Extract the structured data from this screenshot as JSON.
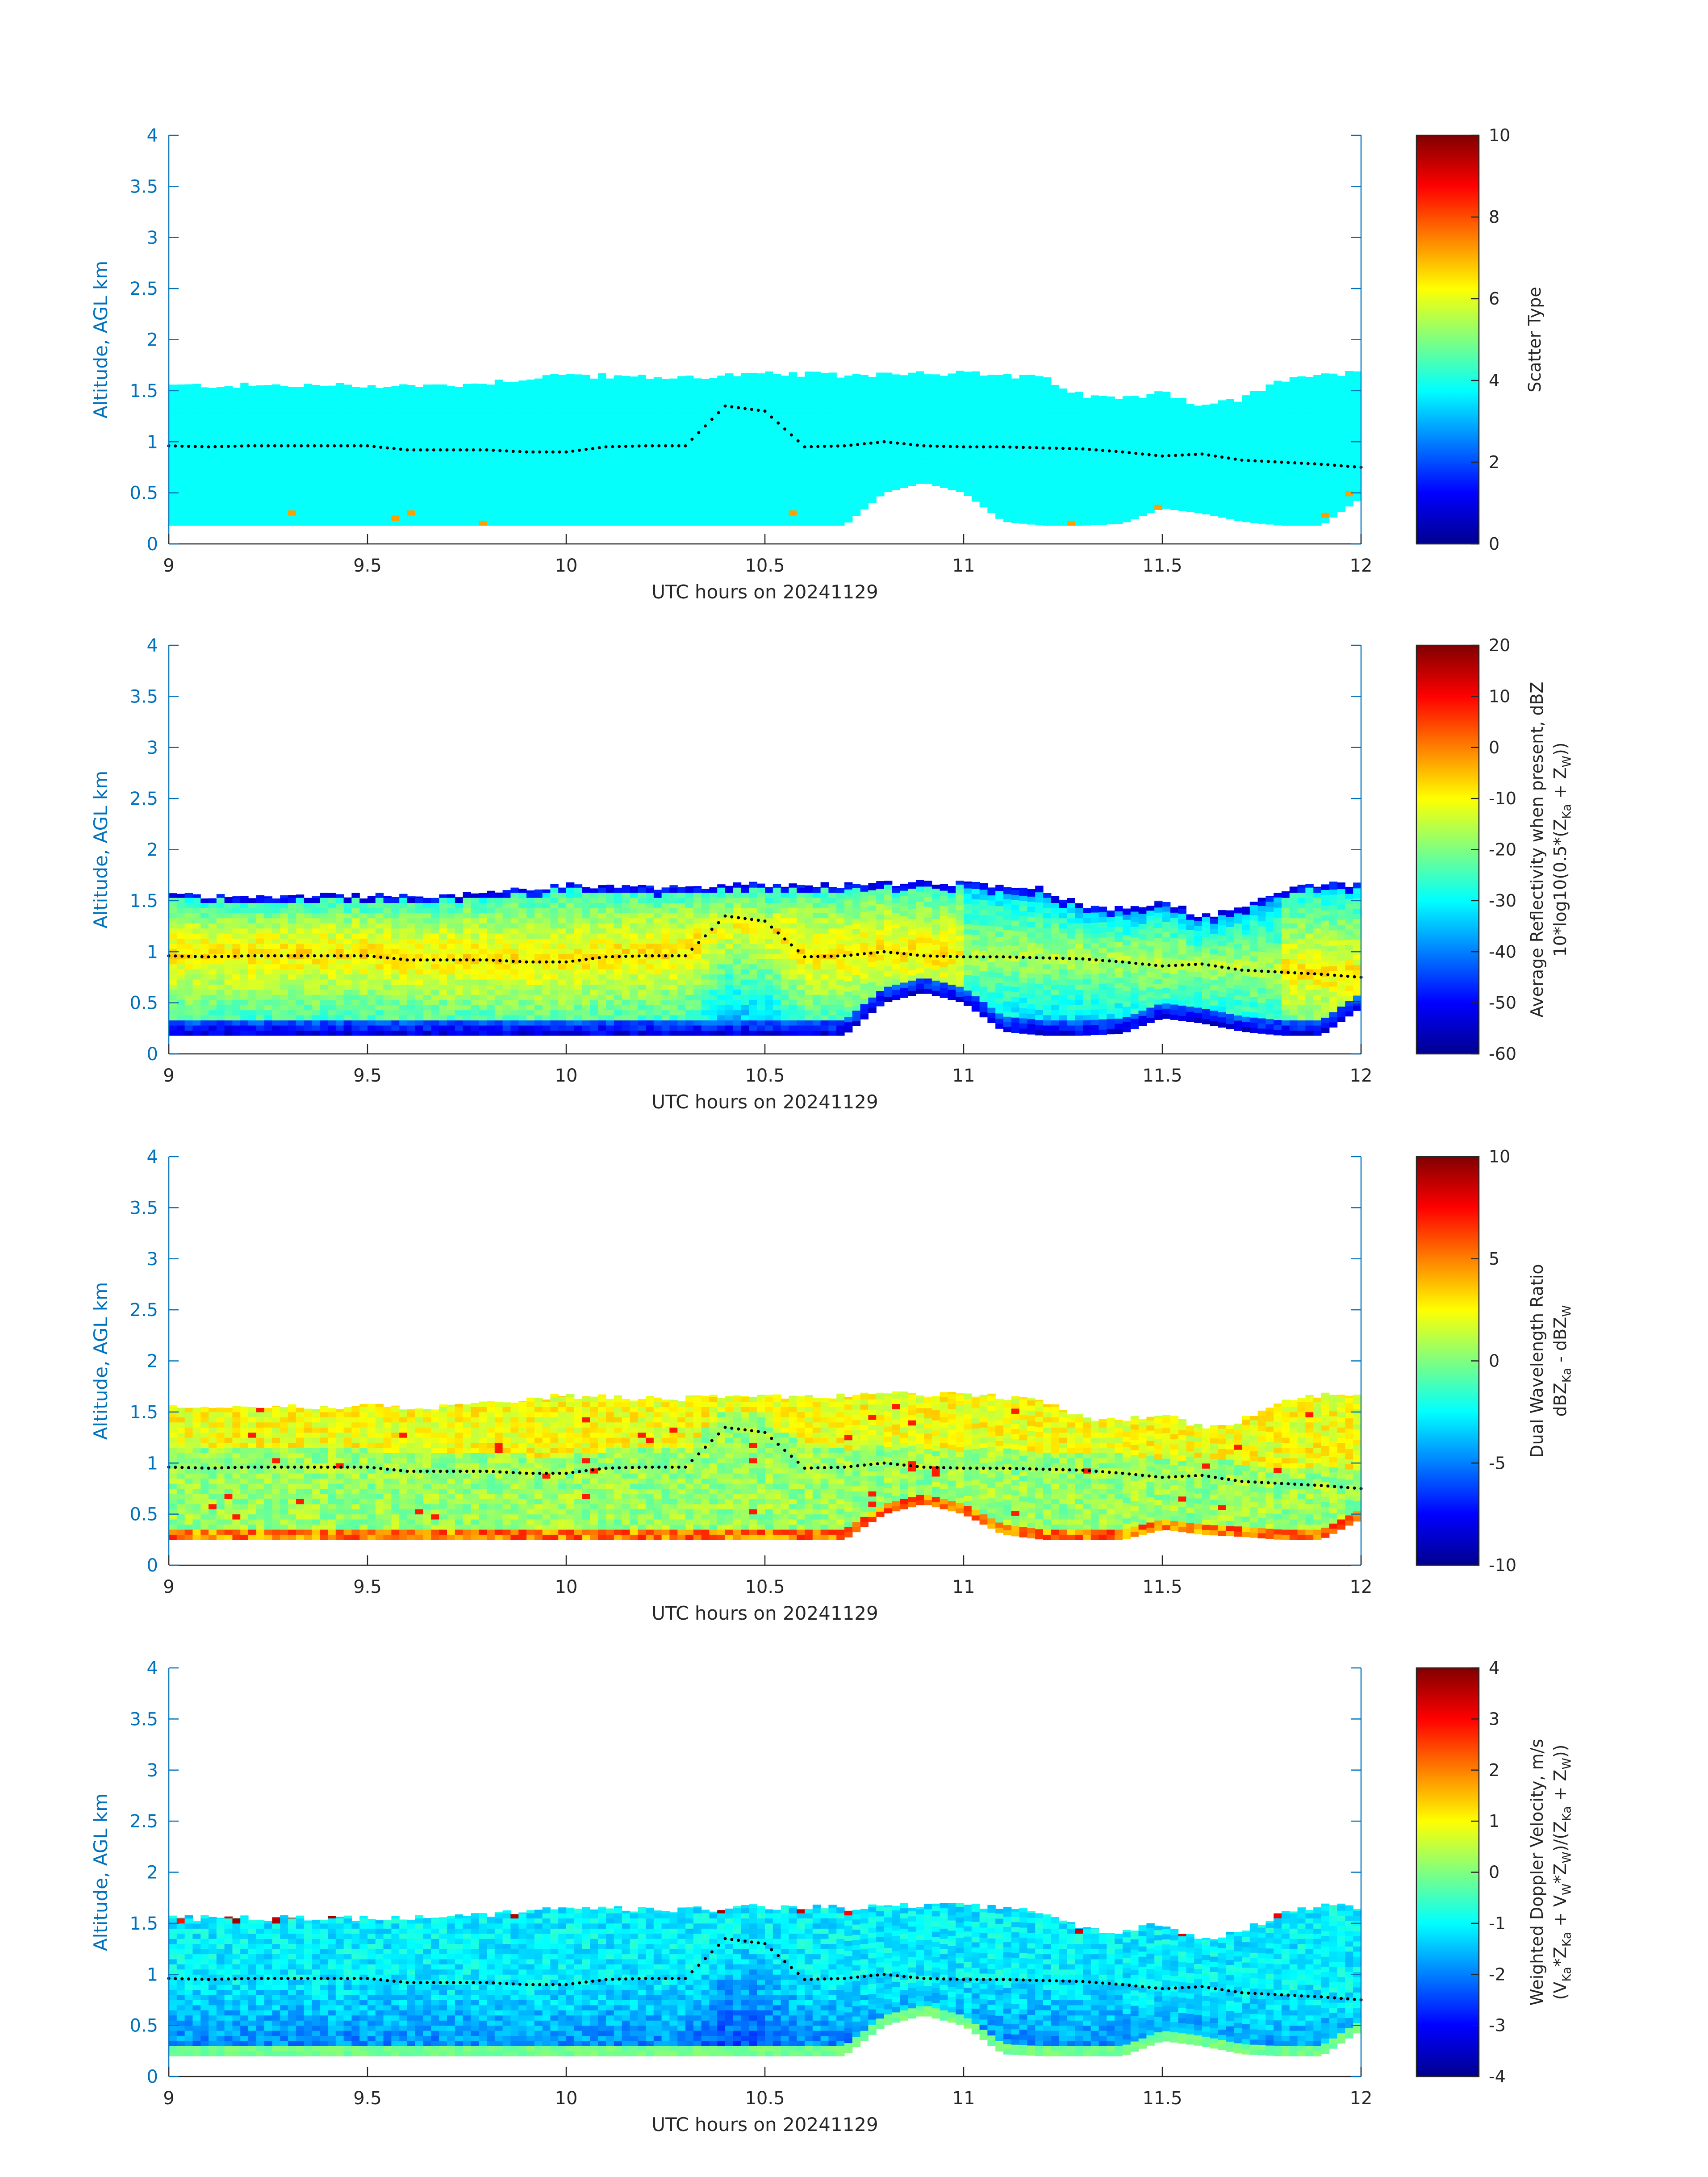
{
  "chart_data": [
    {
      "type": "heatmap",
      "xlabel": "UTC hours on 20241129",
      "ylabel": "Altitude, AGL km",
      "xlim": [
        9,
        12
      ],
      "ylim": [
        0,
        4
      ],
      "xticks": [
        "9",
        "9.5",
        "10",
        "10.5",
        "11",
        "11.5",
        "12"
      ],
      "yticks": [
        "0",
        "0.5",
        "1",
        "1.5",
        "2",
        "2.5",
        "3",
        "3.5",
        "4"
      ],
      "colorbar_label_lines": [
        "Scatter Type"
      ],
      "colorbar_range": [
        0,
        10
      ],
      "colorbar_ticks": [
        "0",
        "2",
        "4",
        "6",
        "8",
        "10"
      ],
      "mode": "type",
      "dominant_value": 3.8,
      "echo_top_km": [
        1.55,
        1.55,
        1.55,
        1.55,
        1.55,
        1.55,
        1.55,
        1.55,
        1.58,
        1.62,
        1.66,
        1.64,
        1.63,
        1.63,
        1.65,
        1.66,
        1.66,
        1.65,
        1.67,
        1.68,
        1.67,
        1.65,
        1.62,
        1.45,
        1.42,
        1.5,
        1.35,
        1.42,
        1.6,
        1.67,
        1.66
      ],
      "echo_base_km": [
        0.18,
        0.18,
        0.18,
        0.18,
        0.18,
        0.18,
        0.18,
        0.18,
        0.18,
        0.18,
        0.18,
        0.18,
        0.18,
        0.18,
        0.18,
        0.18,
        0.18,
        0.18,
        0.5,
        0.6,
        0.5,
        0.22,
        0.18,
        0.18,
        0.2,
        0.35,
        0.3,
        0.22,
        0.18,
        0.18,
        0.45
      ]
    },
    {
      "type": "heatmap",
      "xlabel": "UTC hours on 20241129",
      "ylabel": "Altitude, AGL km",
      "xlim": [
        9,
        12
      ],
      "ylim": [
        0,
        4
      ],
      "xticks": [
        "9",
        "9.5",
        "10",
        "10.5",
        "11",
        "11.5",
        "12"
      ],
      "yticks": [
        "0",
        "0.5",
        "1",
        "1.5",
        "2",
        "2.5",
        "3",
        "3.5",
        "4"
      ],
      "colorbar_label_lines": [
        "Average Reflectivity when present, dBZ",
        "10*log10(0.5*(Z_Ka + Z_W))"
      ],
      "colorbar_range": [
        -60,
        20
      ],
      "colorbar_ticks": [
        "-60",
        "-50",
        "-40",
        "-30",
        "-20",
        "-10",
        "0",
        "10",
        "20"
      ],
      "mode": "reflectivity",
      "echo_top_km": [
        1.55,
        1.55,
        1.55,
        1.55,
        1.55,
        1.55,
        1.55,
        1.55,
        1.58,
        1.62,
        1.66,
        1.64,
        1.63,
        1.63,
        1.65,
        1.66,
        1.66,
        1.65,
        1.67,
        1.68,
        1.67,
        1.65,
        1.62,
        1.45,
        1.42,
        1.5,
        1.35,
        1.42,
        1.6,
        1.67,
        1.66
      ],
      "echo_base_km": [
        0.18,
        0.18,
        0.18,
        0.18,
        0.18,
        0.18,
        0.18,
        0.18,
        0.18,
        0.18,
        0.18,
        0.18,
        0.18,
        0.18,
        0.18,
        0.18,
        0.18,
        0.18,
        0.5,
        0.6,
        0.5,
        0.22,
        0.18,
        0.18,
        0.2,
        0.35,
        0.3,
        0.22,
        0.18,
        0.18,
        0.45
      ]
    },
    {
      "type": "heatmap",
      "xlabel": "UTC hours on 20241129",
      "ylabel": "Altitude, AGL km",
      "xlim": [
        9,
        12
      ],
      "ylim": [
        0,
        4
      ],
      "xticks": [
        "9",
        "9.5",
        "10",
        "10.5",
        "11",
        "11.5",
        "12"
      ],
      "yticks": [
        "0",
        "0.5",
        "1",
        "1.5",
        "2",
        "2.5",
        "3",
        "3.5",
        "4"
      ],
      "colorbar_label_lines": [
        "Dual Wavelength Ratio",
        "dBZ_Ka - dBZ_W"
      ],
      "colorbar_range": [
        -10,
        10
      ],
      "colorbar_ticks": [
        "-10",
        "-5",
        "0",
        "5",
        "10"
      ],
      "mode": "dwr",
      "echo_top_km": [
        1.55,
        1.55,
        1.55,
        1.55,
        1.55,
        1.55,
        1.55,
        1.55,
        1.58,
        1.62,
        1.66,
        1.64,
        1.63,
        1.63,
        1.65,
        1.66,
        1.66,
        1.65,
        1.67,
        1.68,
        1.67,
        1.65,
        1.62,
        1.45,
        1.42,
        1.5,
        1.35,
        1.42,
        1.6,
        1.67,
        1.66
      ],
      "echo_base_km": [
        0.25,
        0.25,
        0.25,
        0.25,
        0.25,
        0.25,
        0.25,
        0.25,
        0.25,
        0.25,
        0.25,
        0.25,
        0.25,
        0.25,
        0.25,
        0.25,
        0.25,
        0.25,
        0.5,
        0.6,
        0.5,
        0.3,
        0.25,
        0.25,
        0.25,
        0.35,
        0.3,
        0.28,
        0.25,
        0.25,
        0.45
      ]
    },
    {
      "type": "heatmap",
      "xlabel": "UTC hours on 20241129",
      "ylabel": "Altitude, AGL km",
      "xlim": [
        9,
        12
      ],
      "ylim": [
        0,
        4
      ],
      "xticks": [
        "9",
        "9.5",
        "10",
        "10.5",
        "11",
        "11.5",
        "12"
      ],
      "yticks": [
        "0",
        "0.5",
        "1",
        "1.5",
        "2",
        "2.5",
        "3",
        "3.5",
        "4"
      ],
      "colorbar_label_lines": [
        "Weighted Doppler Velocity, m/s",
        "(V_Ka*Z_Ka + V_W*Z_W)/(Z_Ka + Z_W))"
      ],
      "colorbar_range": [
        -4,
        4
      ],
      "colorbar_ticks": [
        "-4",
        "-3",
        "-2",
        "-1",
        "0",
        "1",
        "2",
        "3",
        "4"
      ],
      "mode": "velocity",
      "echo_top_km": [
        1.55,
        1.55,
        1.55,
        1.55,
        1.55,
        1.55,
        1.55,
        1.55,
        1.58,
        1.62,
        1.66,
        1.64,
        1.63,
        1.63,
        1.65,
        1.66,
        1.66,
        1.65,
        1.67,
        1.68,
        1.67,
        1.65,
        1.62,
        1.45,
        1.42,
        1.5,
        1.35,
        1.42,
        1.6,
        1.67,
        1.66
      ],
      "echo_base_km": [
        0.2,
        0.2,
        0.2,
        0.2,
        0.2,
        0.2,
        0.2,
        0.2,
        0.2,
        0.2,
        0.2,
        0.2,
        0.2,
        0.2,
        0.2,
        0.2,
        0.2,
        0.2,
        0.5,
        0.6,
        0.5,
        0.22,
        0.2,
        0.2,
        0.2,
        0.35,
        0.3,
        0.22,
        0.2,
        0.2,
        0.45
      ]
    }
  ],
  "cloud_base_line": {
    "x": [
      9.0,
      9.1,
      9.2,
      9.3,
      9.4,
      9.5,
      9.6,
      9.7,
      9.8,
      9.9,
      10.0,
      10.1,
      10.2,
      10.3,
      10.4,
      10.5,
      10.6,
      10.7,
      10.8,
      10.9,
      11.0,
      11.1,
      11.2,
      11.3,
      11.4,
      11.5,
      11.6,
      11.7,
      11.8,
      11.9,
      12.0
    ],
    "y": [
      0.96,
      0.95,
      0.96,
      0.96,
      0.96,
      0.96,
      0.92,
      0.92,
      0.92,
      0.9,
      0.9,
      0.95,
      0.96,
      0.96,
      1.35,
      1.3,
      0.95,
      0.96,
      1.0,
      0.96,
      0.95,
      0.95,
      0.94,
      0.93,
      0.9,
      0.86,
      0.88,
      0.82,
      0.8,
      0.78,
      0.75
    ]
  },
  "colors": {
    "axis": "#0072BD",
    "text": "#262626",
    "scatter_type_fill": "#1effdb",
    "marker": "#000000"
  }
}
